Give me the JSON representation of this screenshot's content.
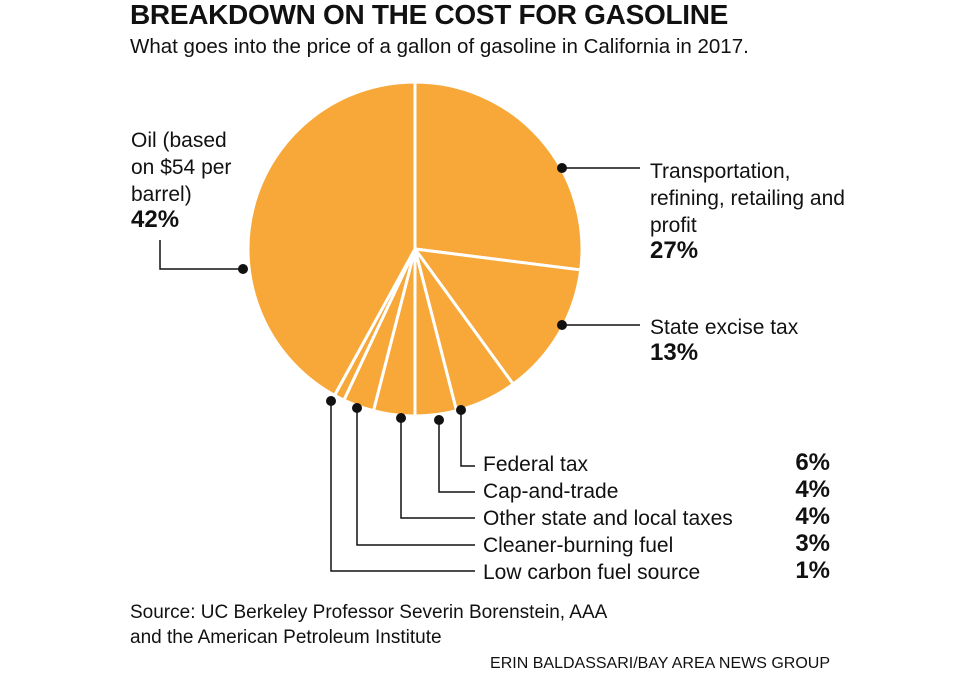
{
  "chart_data": {
    "type": "pie",
    "title": "BREAKDOWN ON THE COST FOR GASOLINE",
    "subtitle": "What goes into the price of a gallon of gasoline in California in 2017.",
    "categories": [
      "Transportation, refining, retailing and profit",
      "State excise tax",
      "Federal tax",
      "Cap-and-trade",
      "Other state and local taxes",
      "Cleaner-burning fuel",
      "Low carbon fuel source",
      "Oil (based on $54 per barrel)"
    ],
    "values": [
      27,
      13,
      6,
      4,
      4,
      3,
      1,
      42
    ],
    "value_labels": [
      "27%",
      "13%",
      "6%",
      "4%",
      "4%",
      "3%",
      "1%",
      "42%"
    ],
    "color": "#f7a838",
    "source": "Source: UC Berkeley Professor Severin Borenstein, AAA and the American Petroleum Institute",
    "credit": "ERIN BALDASSARI/BAY AREA NEWS GROUP"
  }
}
